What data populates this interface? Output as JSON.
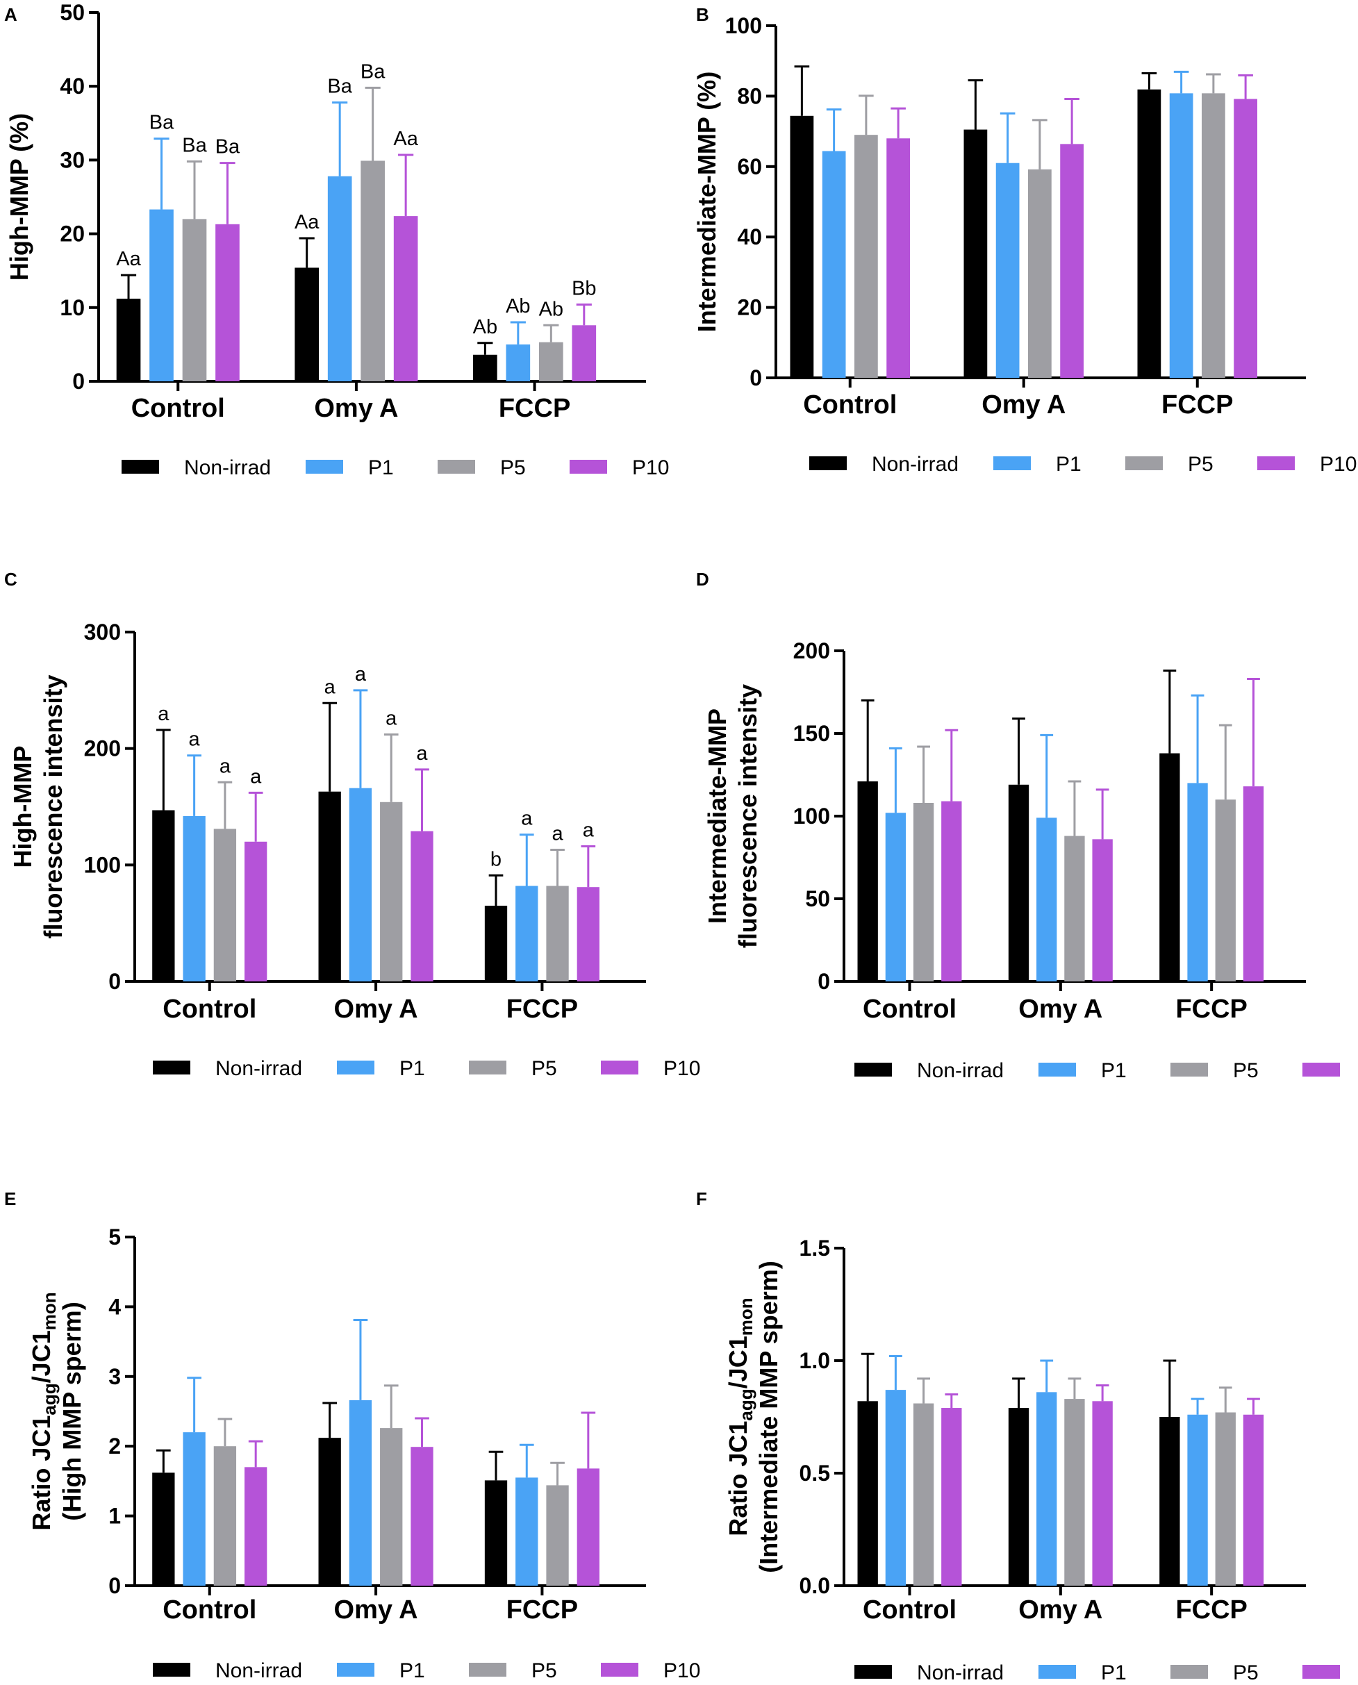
{
  "figure": {
    "legend_labels": [
      "Non-irrad",
      "P1",
      "P5",
      "P10"
    ],
    "colors": {
      "Non-irrad": "#000000",
      "P1": "#4aa3f5",
      "P5": "#9e9ea3",
      "P10": "#b553d8"
    }
  },
  "chart_data": [
    {
      "panel": "A",
      "type": "bar",
      "ylabel": "High-MMP (%)",
      "ylim": [
        0,
        50
      ],
      "yticks": [
        0,
        10,
        20,
        30,
        40,
        50
      ],
      "categories": [
        "Control",
        "Omy A",
        "FCCP"
      ],
      "series": [
        {
          "name": "Non-irrad",
          "values": [
            11.2,
            15.4,
            3.6
          ],
          "errors": [
            3.2,
            4.0,
            1.6
          ],
          "labels": [
            "Aa",
            "Aa",
            "Ab"
          ]
        },
        {
          "name": "P1",
          "values": [
            23.3,
            27.8,
            5.0
          ],
          "errors": [
            9.6,
            10.0,
            3.0
          ],
          "labels": [
            "Ba",
            "Ba",
            "Ab"
          ]
        },
        {
          "name": "P5",
          "values": [
            22.0,
            29.9,
            5.3
          ],
          "errors": [
            7.8,
            9.9,
            2.3
          ],
          "labels": [
            "Ba",
            "Ba",
            "Ab"
          ]
        },
        {
          "name": "P10",
          "values": [
            21.3,
            22.4,
            7.6
          ],
          "errors": [
            8.3,
            8.3,
            2.8
          ],
          "labels": [
            "Ba",
            "Aa",
            "Bb"
          ]
        }
      ]
    },
    {
      "panel": "B",
      "type": "bar",
      "ylabel": "Intermediate-MMP (%)",
      "ylim": [
        0,
        100
      ],
      "yticks": [
        0,
        20,
        40,
        60,
        80,
        100
      ],
      "categories": [
        "Control",
        "Omy A",
        "FCCP"
      ],
      "series": [
        {
          "name": "Non-irrad",
          "values": [
            74.4,
            70.5,
            81.9
          ],
          "errors": [
            14.0,
            14.0,
            4.6
          ]
        },
        {
          "name": "P1",
          "values": [
            64.4,
            61.0,
            80.8
          ],
          "errors": [
            11.8,
            14.1,
            6.1
          ]
        },
        {
          "name": "P5",
          "values": [
            69.0,
            59.2,
            80.8
          ],
          "errors": [
            11.1,
            14.0,
            5.4
          ]
        },
        {
          "name": "P10",
          "values": [
            68.0,
            66.4,
            79.2
          ],
          "errors": [
            8.5,
            12.8,
            6.7
          ]
        }
      ]
    },
    {
      "panel": "C",
      "type": "bar",
      "ylabel": [
        "High-MMP",
        "fluorescence intensity"
      ],
      "ylim": [
        0,
        300
      ],
      "yticks": [
        0,
        100,
        200,
        300
      ],
      "categories": [
        "Control",
        "Omy A",
        "FCCP"
      ],
      "series": [
        {
          "name": "Non-irrad",
          "values": [
            147,
            163,
            65
          ],
          "errors": [
            69,
            76,
            26
          ],
          "labels": [
            "a",
            "a",
            "b"
          ]
        },
        {
          "name": "P1",
          "values": [
            142,
            166,
            82
          ],
          "errors": [
            52,
            84,
            44
          ],
          "labels": [
            "a",
            "a",
            "a"
          ]
        },
        {
          "name": "P5",
          "values": [
            131,
            154,
            82
          ],
          "errors": [
            40,
            58,
            31
          ],
          "labels": [
            "a",
            "a",
            "a"
          ]
        },
        {
          "name": "P10",
          "values": [
            120,
            129,
            81
          ],
          "errors": [
            42,
            53,
            35
          ],
          "labels": [
            "a",
            "a",
            "a"
          ]
        }
      ]
    },
    {
      "panel": "D",
      "type": "bar",
      "ylabel": [
        "Intermediate-MMP",
        "fluorescence intensity"
      ],
      "ylim": [
        0,
        200
      ],
      "yticks": [
        0,
        50,
        100,
        150,
        200
      ],
      "categories": [
        "Control",
        "Omy A",
        "FCCP"
      ],
      "series": [
        {
          "name": "Non-irrad",
          "values": [
            121,
            119,
            138
          ],
          "errors": [
            49,
            40,
            50
          ]
        },
        {
          "name": "P1",
          "values": [
            102,
            99,
            120
          ],
          "errors": [
            39,
            50,
            53
          ]
        },
        {
          "name": "P5",
          "values": [
            108,
            88,
            110
          ],
          "errors": [
            34,
            33,
            45
          ]
        },
        {
          "name": "P10",
          "values": [
            109,
            86,
            118
          ],
          "errors": [
            43,
            30,
            65
          ]
        }
      ]
    },
    {
      "panel": "E",
      "type": "bar",
      "ylabel": [
        "Ratio JC1agg/JC1mon",
        "(High MMP sperm)"
      ],
      "ylim": [
        0,
        5
      ],
      "yticks": [
        0,
        1,
        2,
        3,
        4,
        5
      ],
      "categories": [
        "Control",
        "Omy A",
        "FCCP"
      ],
      "series": [
        {
          "name": "Non-irrad",
          "values": [
            1.62,
            2.12,
            1.51
          ],
          "errors": [
            0.32,
            0.5,
            0.41
          ]
        },
        {
          "name": "P1",
          "values": [
            2.2,
            2.66,
            1.55
          ],
          "errors": [
            0.78,
            1.15,
            0.47
          ]
        },
        {
          "name": "P5",
          "values": [
            2.0,
            2.26,
            1.44
          ],
          "errors": [
            0.39,
            0.61,
            0.32
          ]
        },
        {
          "name": "P10",
          "values": [
            1.7,
            1.99,
            1.68
          ],
          "errors": [
            0.37,
            0.41,
            0.8
          ]
        }
      ]
    },
    {
      "panel": "F",
      "type": "bar",
      "ylabel": [
        "Ratio JC1agg/JC1mon",
        "(Intermediate MMP sperm)"
      ],
      "ylim": [
        0,
        1.5
      ],
      "yticks": [
        0.0,
        0.5,
        1.0,
        1.5
      ],
      "categories": [
        "Control",
        "Omy A",
        "FCCP"
      ],
      "series": [
        {
          "name": "Non-irrad",
          "values": [
            0.82,
            0.79,
            0.75
          ],
          "errors": [
            0.21,
            0.13,
            0.25
          ]
        },
        {
          "name": "P1",
          "values": [
            0.87,
            0.86,
            0.76
          ],
          "errors": [
            0.15,
            0.14,
            0.07
          ]
        },
        {
          "name": "P5",
          "values": [
            0.81,
            0.83,
            0.77
          ],
          "errors": [
            0.11,
            0.09,
            0.11
          ]
        },
        {
          "name": "P10",
          "values": [
            0.79,
            0.82,
            0.76
          ],
          "errors": [
            0.06,
            0.07,
            0.07
          ]
        }
      ]
    }
  ]
}
